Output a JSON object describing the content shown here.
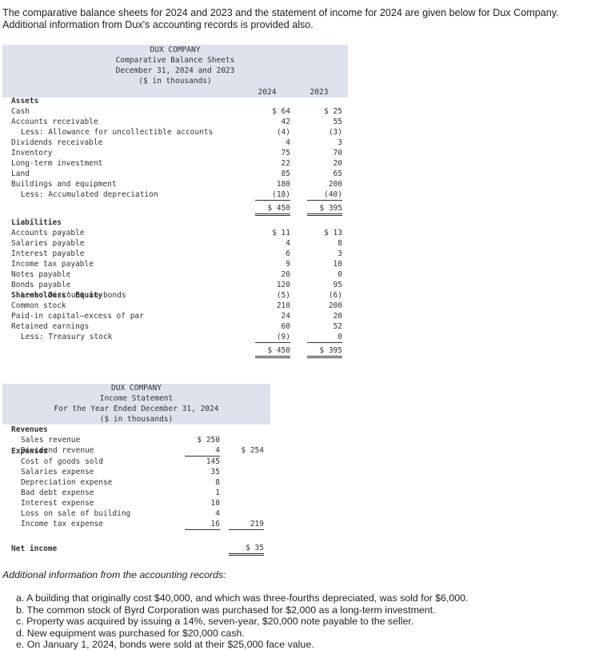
{
  "intro": [
    "The comparative balance sheets for 2024 and 2023 and the statement of income for 2024 are given below for Dux Company.",
    "Additional information from Dux's accounting records is provided also."
  ],
  "balance_sheet": {
    "header": [
      "DUX COMPANY",
      "Comparative Balance Sheets",
      "December 31, 2024 and 2023",
      "($ in thousands)"
    ],
    "columns": [
      "2024",
      "2023"
    ],
    "sections": [
      {
        "heading": "Assets",
        "items": [
          {
            "label": "Cash",
            "col1": "$ 64",
            "col2": "$ 25"
          },
          {
            "label": "Accounts receivable",
            "col1": "42",
            "col2": "55"
          },
          {
            "label": "Less: Allowance for uncollectible accounts",
            "col1": "(4)",
            "col2": "(3)"
          },
          {
            "label": "Dividends receivable",
            "col1": "4",
            "col2": "3"
          },
          {
            "label": "Inventory",
            "col1": "75",
            "col2": "70"
          },
          {
            "label": "Long-term investment",
            "col1": "22",
            "col2": "20"
          },
          {
            "label": "Land",
            "col1": "85",
            "col2": "65"
          },
          {
            "label": "Buildings and equipment",
            "col1": "180",
            "col2": "200"
          },
          {
            "label": "Less: Accumulated depreciation",
            "col1": "(18)",
            "col2": "(40)"
          }
        ],
        "total": {
          "col1": "$ 450",
          "col2": "$ 395"
        }
      },
      {
        "heading": "Liabilities",
        "items": [
          {
            "label": "Accounts payable",
            "col1": "$ 11",
            "col2": "$ 13"
          },
          {
            "label": "Salaries payable",
            "col1": "4",
            "col2": "8"
          },
          {
            "label": "Interest payable",
            "col1": "6",
            "col2": "3"
          },
          {
            "label": "Income tax payable",
            "col1": "9",
            "col2": "10"
          },
          {
            "label": "Notes payable",
            "col1": "20",
            "col2": "0"
          },
          {
            "label": "Bonds payable",
            "col1": "120",
            "col2": "95"
          },
          {
            "label": "Less: Discount on bonds",
            "col1": "(5)",
            "col2": "(6)"
          }
        ]
      },
      {
        "heading": "Shareholders' Equity",
        "items": [
          {
            "label": "Common stock",
            "col1": "210",
            "col2": "200"
          },
          {
            "label": "Paid-in capital—excess of par",
            "col1": "24",
            "col2": "20"
          },
          {
            "label": "Retained earnings",
            "col1": "60",
            "col2": "52"
          },
          {
            "label": "Less: Treasury stock",
            "col1": "(9)",
            "col2": "0"
          }
        ],
        "total": {
          "col1": "$ 450",
          "col2": "$ 395"
        }
      }
    ]
  },
  "income_statement": {
    "header": [
      "DUX COMPANY",
      "Income Statement",
      "For the Year Ended December 31, 2024",
      "($ in thousands)"
    ],
    "sections": [
      {
        "heading": "Revenues",
        "items": [
          {
            "label": "Sales revenue",
            "col1": "$ 250"
          },
          {
            "label": "Dividend revenue",
            "col1": "4",
            "col2": "$ 254"
          }
        ]
      },
      {
        "heading": "Expenses",
        "items": [
          {
            "label": "Cost of goods sold",
            "col1": "145"
          },
          {
            "label": "Salaries expense",
            "col1": "35"
          },
          {
            "label": "Depreciation expense",
            "col1": "8"
          },
          {
            "label": "Bad debt expense",
            "col1": "1"
          },
          {
            "label": "Interest expense",
            "col1": "10"
          },
          {
            "label": "Loss on sale of building",
            "col1": "4"
          },
          {
            "label": "Income tax expense",
            "col1": "16",
            "col2": "219"
          }
        ]
      }
    ],
    "net_income": {
      "label": "Net income",
      "col2": "$ 35"
    }
  },
  "additional_info": {
    "heading": "Additional information from the accounting records:",
    "items": [
      "a. A building that originally cost $40,000, and which was three-fourths depreciated, was sold for $6,000.",
      "b. The common stock of Byrd Corporation was purchased for $2,000 as a long-term investment.",
      "c. Property was acquired by issuing a 14%, seven-year, $20,000 note payable to the seller.",
      "d. New equipment was purchased for $20,000 cash.",
      "e. On January 1, 2024, bonds were sold at their $25,000 face value."
    ]
  }
}
